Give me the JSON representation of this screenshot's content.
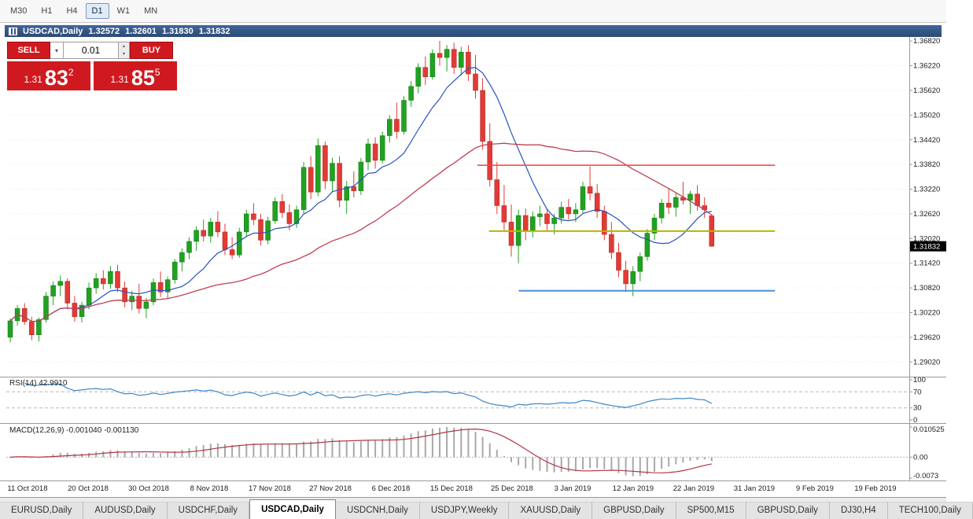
{
  "toolbar": {
    "timeframes": [
      "M30",
      "H1",
      "H4",
      "D1",
      "W1",
      "MN"
    ],
    "active": "D1"
  },
  "chart_header": {
    "symbol": "USDCAD,Daily",
    "open": "1.32572",
    "high": "1.32601",
    "low": "1.31830",
    "close": "1.31832"
  },
  "trade_panel": {
    "sell_label": "SELL",
    "buy_label": "BUY",
    "volume": "0.01",
    "sell_price": {
      "prefix": "1.31",
      "big": "83",
      "sup": "2"
    },
    "buy_price": {
      "prefix": "1.31",
      "big": "85",
      "sup": "5"
    }
  },
  "icons": {
    "volume_dropdown": "▾",
    "spinner_up": "▴",
    "spinner_down": "▾"
  },
  "price_axis": {
    "labels": [
      "1.36820",
      "1.36220",
      "1.35620",
      "1.35020",
      "1.34420",
      "1.33820",
      "1.33220",
      "1.32620",
      "1.32020",
      "1.31420",
      "1.30820",
      "1.30220",
      "1.29620",
      "1.29020"
    ],
    "current_price": "1.31832"
  },
  "time_axis": {
    "labels": [
      "11 Oct 2018",
      "20 Oct 2018",
      "30 Oct 2018",
      "8 Nov 2018",
      "17 Nov 2018",
      "27 Nov 2018",
      "6 Dec 2018",
      "15 Dec 2018",
      "25 Dec 2018",
      "3 Jan 2019",
      "12 Jan 2019",
      "22 Jan 2019",
      "31 Jan 2019",
      "9 Feb 2019",
      "19 Feb 2019"
    ],
    "positions": [
      0.0235,
      0.0907,
      0.1578,
      0.2249,
      0.292,
      0.3592,
      0.4263,
      0.4934,
      0.5605,
      0.6277,
      0.6948,
      0.7619,
      0.829,
      0.8962,
      0.9633
    ]
  },
  "indicators": {
    "rsi": {
      "label": "RSI(14) 42.9910",
      "period": 14,
      "value": "42.9910",
      "levels": [
        "100",
        "70",
        "30",
        "0"
      ],
      "dashed_levels": [
        70,
        30
      ]
    },
    "macd": {
      "label": "MACD(12,26,9) -0.001040 -0.001130",
      "fast": 12,
      "slow": 26,
      "signal": 9,
      "value_main": "-0.001040",
      "value_signal": "-0.001130",
      "levels": [
        "0.010525",
        "0.00",
        "-0.0073"
      ]
    }
  },
  "tabs": {
    "items": [
      "EURUSD,Daily",
      "AUDUSD,Daily",
      "USDCHF,Daily",
      "USDCAD,Daily",
      "USDCNH,Daily",
      "USDJPY,Weekly",
      "XAUUSD,Daily",
      "GBPUSD,Daily",
      "SP500,M15",
      "GBPUSD,Daily",
      "DJ30,H4",
      "TECH100,Daily"
    ],
    "active_index": 3
  },
  "colors": {
    "candle_up": "#21a121",
    "candle_up_dark": "#0e7a0e",
    "candle_down": "#e23b35",
    "candle_down_dark": "#a8201c",
    "ma_fast": "#2a52be",
    "ma_slow": "#c04055",
    "rsi_line": "#3d85c6",
    "macd_hist": "#a9a9a9",
    "macd_signal": "#b03545",
    "hline_red": "#ff4a4a",
    "hline_yellow": "#b8b400",
    "hline_blue": "#4a90d9",
    "titlebar_bg": "#31507d",
    "trade_red": "#d0191f",
    "price_box_bg": "#000000"
  },
  "chart_data": {
    "type": "candlestick",
    "symbol": "USDCAD",
    "timeframe": "Daily",
    "y_range": [
      1.2872,
      1.369
    ],
    "macd_range": [
      -0.0073,
      0.010525
    ],
    "overlays": [
      {
        "name": "ma-fast",
        "kind": "sma",
        "period": 10
      },
      {
        "name": "ma-slow",
        "kind": "sma",
        "period": 34
      }
    ],
    "hlines": [
      {
        "name": "hline-resistance-red",
        "price": 1.338,
        "x1": 0.522,
        "x2": 0.852,
        "color_key": "hline_red",
        "width": 1.6
      },
      {
        "name": "hline-level-yellow",
        "price": 1.322,
        "x1": 0.535,
        "x2": 0.852,
        "color_key": "hline_yellow",
        "width": 2
      },
      {
        "name": "hline-support-blue",
        "price": 1.3075,
        "x1": 0.568,
        "x2": 0.852,
        "color_key": "hline_blue",
        "width": 2
      }
    ],
    "ohlc": [
      [
        1.2962,
        1.3008,
        1.295,
        1.3002
      ],
      [
        1.3002,
        1.304,
        1.299,
        1.3032
      ],
      [
        1.3032,
        1.3045,
        1.2992,
        1.3
      ],
      [
        1.3,
        1.3012,
        1.2955,
        1.2968
      ],
      [
        1.2968,
        1.301,
        1.2952,
        1.3005
      ],
      [
        1.3005,
        1.3072,
        1.2998,
        1.3062
      ],
      [
        1.3062,
        1.3098,
        1.304,
        1.3088
      ],
      [
        1.3088,
        1.3112,
        1.3062,
        1.3098
      ],
      [
        1.3098,
        1.3105,
        1.303,
        1.3045
      ],
      [
        1.3045,
        1.3062,
        1.3,
        1.3012
      ],
      [
        1.3012,
        1.3048,
        1.2998,
        1.304
      ],
      [
        1.304,
        1.3095,
        1.303,
        1.3082
      ],
      [
        1.3082,
        1.3118,
        1.3068,
        1.3105
      ],
      [
        1.3105,
        1.3125,
        1.3078,
        1.3092
      ],
      [
        1.3092,
        1.3135,
        1.308,
        1.3122
      ],
      [
        1.3122,
        1.3138,
        1.3072,
        1.3082
      ],
      [
        1.3082,
        1.3098,
        1.3035,
        1.3048
      ],
      [
        1.3048,
        1.3075,
        1.3028,
        1.3062
      ],
      [
        1.3062,
        1.3092,
        1.302,
        1.3032
      ],
      [
        1.3032,
        1.3058,
        1.3008,
        1.3048
      ],
      [
        1.3048,
        1.3105,
        1.304,
        1.3095
      ],
      [
        1.3095,
        1.3122,
        1.306,
        1.3072
      ],
      [
        1.3072,
        1.311,
        1.3055,
        1.3102
      ],
      [
        1.3102,
        1.3152,
        1.3092,
        1.3145
      ],
      [
        1.3145,
        1.3178,
        1.3122,
        1.3168
      ],
      [
        1.3168,
        1.3205,
        1.3152,
        1.3195
      ],
      [
        1.3195,
        1.3232,
        1.3172,
        1.3222
      ],
      [
        1.3222,
        1.3248,
        1.3195,
        1.3208
      ],
      [
        1.3208,
        1.3252,
        1.3192,
        1.3242
      ],
      [
        1.3242,
        1.3268,
        1.3205,
        1.3218
      ],
      [
        1.3218,
        1.3238,
        1.3162,
        1.3175
      ],
      [
        1.3175,
        1.3205,
        1.3152,
        1.3162
      ],
      [
        1.3162,
        1.3228,
        1.3155,
        1.3218
      ],
      [
        1.3218,
        1.3272,
        1.3208,
        1.3262
      ],
      [
        1.3262,
        1.3288,
        1.3235,
        1.3248
      ],
      [
        1.3248,
        1.3262,
        1.3185,
        1.3198
      ],
      [
        1.3198,
        1.3255,
        1.3188,
        1.3245
      ],
      [
        1.3245,
        1.3302,
        1.3238,
        1.3292
      ],
      [
        1.3292,
        1.331,
        1.3252,
        1.3265
      ],
      [
        1.3265,
        1.3285,
        1.3222,
        1.3238
      ],
      [
        1.3238,
        1.3282,
        1.3228,
        1.3272
      ],
      [
        1.3272,
        1.3388,
        1.3262,
        1.3375
      ],
      [
        1.3375,
        1.3402,
        1.3298,
        1.3315
      ],
      [
        1.3315,
        1.3445,
        1.3305,
        1.3428
      ],
      [
        1.3428,
        1.3438,
        1.3322,
        1.3342
      ],
      [
        1.3342,
        1.3398,
        1.3315,
        1.3385
      ],
      [
        1.3385,
        1.3402,
        1.3278,
        1.3295
      ],
      [
        1.3295,
        1.3342,
        1.3262,
        1.3328
      ],
      [
        1.3328,
        1.3365,
        1.3302,
        1.3318
      ],
      [
        1.3318,
        1.3398,
        1.3308,
        1.3388
      ],
      [
        1.3388,
        1.3445,
        1.3368,
        1.3432
      ],
      [
        1.3432,
        1.3448,
        1.3372,
        1.3392
      ],
      [
        1.3392,
        1.3462,
        1.3385,
        1.3452
      ],
      [
        1.3452,
        1.3502,
        1.3435,
        1.3492
      ],
      [
        1.3492,
        1.3532,
        1.3445,
        1.3462
      ],
      [
        1.3462,
        1.3548,
        1.3455,
        1.3538
      ],
      [
        1.3538,
        1.3585,
        1.3522,
        1.3572
      ],
      [
        1.3572,
        1.3628,
        1.3555,
        1.3618
      ],
      [
        1.3618,
        1.3645,
        1.3575,
        1.3595
      ],
      [
        1.3595,
        1.3662,
        1.3588,
        1.3652
      ],
      [
        1.3652,
        1.3682,
        1.3622,
        1.3642
      ],
      [
        1.3642,
        1.3672,
        1.3608,
        1.3662
      ],
      [
        1.3662,
        1.3678,
        1.3602,
        1.3618
      ],
      [
        1.3618,
        1.3668,
        1.3598,
        1.3655
      ],
      [
        1.3655,
        1.3672,
        1.3585,
        1.3602
      ],
      [
        1.3602,
        1.3648,
        1.3542,
        1.3562
      ],
      [
        1.3562,
        1.3592,
        1.3418,
        1.3438
      ],
      [
        1.3438,
        1.3482,
        1.3328,
        1.3345
      ],
      [
        1.3345,
        1.3388,
        1.3262,
        1.3282
      ],
      [
        1.3282,
        1.3332,
        1.3222,
        1.3242
      ],
      [
        1.3242,
        1.3285,
        1.3158,
        1.3185
      ],
      [
        1.3185,
        1.3272,
        1.3142,
        1.3258
      ],
      [
        1.3258,
        1.3275,
        1.3198,
        1.3222
      ],
      [
        1.3222,
        1.3268,
        1.3205,
        1.3255
      ],
      [
        1.3255,
        1.3282,
        1.3232,
        1.3262
      ],
      [
        1.3262,
        1.3275,
        1.3222,
        1.3238
      ],
      [
        1.3238,
        1.3262,
        1.3212,
        1.3252
      ],
      [
        1.3252,
        1.3292,
        1.3238,
        1.3278
      ],
      [
        1.3278,
        1.3298,
        1.3248,
        1.3262
      ],
      [
        1.3262,
        1.3288,
        1.3242,
        1.3272
      ],
      [
        1.3272,
        1.334,
        1.3262,
        1.3328
      ],
      [
        1.3328,
        1.3377,
        1.3295,
        1.3312
      ],
      [
        1.3312,
        1.3335,
        1.3252,
        1.3268
      ],
      [
        1.3268,
        1.3282,
        1.3198,
        1.3212
      ],
      [
        1.3212,
        1.3242,
        1.3152,
        1.3168
      ],
      [
        1.3168,
        1.3192,
        1.3108,
        1.3125
      ],
      [
        1.3125,
        1.3148,
        1.3072,
        1.3092
      ],
      [
        1.3092,
        1.3135,
        1.3062,
        1.3122
      ],
      [
        1.3122,
        1.3168,
        1.3098,
        1.3158
      ],
      [
        1.3158,
        1.3225,
        1.3148,
        1.3215
      ],
      [
        1.3215,
        1.3262,
        1.3198,
        1.3252
      ],
      [
        1.3252,
        1.3298,
        1.3238,
        1.3288
      ],
      [
        1.3288,
        1.3325,
        1.3262,
        1.3278
      ],
      [
        1.3278,
        1.3312,
        1.3255,
        1.3302
      ],
      [
        1.3302,
        1.334,
        1.3285,
        1.3295
      ],
      [
        1.3295,
        1.3318,
        1.3262,
        1.331
      ],
      [
        1.331,
        1.3332,
        1.327,
        1.3282
      ],
      [
        1.3282,
        1.3302,
        1.3252,
        1.3272
      ],
      [
        1.32572,
        1.32601,
        1.3183,
        1.31832
      ]
    ]
  }
}
